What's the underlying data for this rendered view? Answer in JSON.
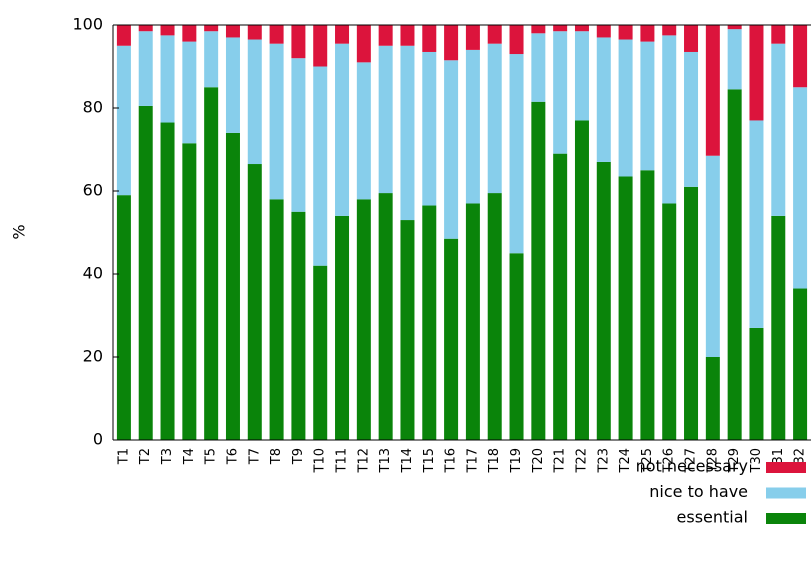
{
  "chart_data": {
    "type": "stacked_bar",
    "y_label": "%",
    "categories": [
      "T1",
      "T2",
      "T3",
      "T4",
      "T5",
      "T6",
      "T7",
      "T8",
      "T9",
      "T10",
      "T11",
      "T12",
      "T13",
      "T14",
      "T15",
      "T16",
      "T17",
      "T18",
      "T19",
      "T20",
      "T21",
      "T22",
      "T23",
      "T24",
      "T25",
      "T26",
      "T27",
      "T28",
      "T29",
      "T30",
      "T31",
      "T32"
    ],
    "series": [
      {
        "name": "essential",
        "color": "#0a840a",
        "values": [
          59,
          80.5,
          76.5,
          71.5,
          85,
          74,
          66.5,
          58,
          55,
          42,
          54,
          58,
          59.5,
          53,
          56.5,
          48.5,
          57,
          59.5,
          45,
          81.5,
          69,
          77,
          67,
          63.5,
          65,
          57,
          61,
          20,
          84.5,
          27,
          54,
          36.5
        ]
      },
      {
        "name": "nice to have",
        "color": "#87ceeb",
        "values": [
          36,
          18,
          21,
          24.5,
          13.5,
          23,
          30,
          37.5,
          37,
          48,
          41.5,
          33,
          35.5,
          42,
          37,
          43,
          37,
          36,
          48,
          16.5,
          29.5,
          21.5,
          30,
          33,
          31,
          40.5,
          32.5,
          48.5,
          14.5,
          50,
          41.5,
          48.5
        ]
      },
      {
        "name": "not necessary",
        "color": "#dc143c",
        "values": [
          5,
          1.5,
          2.5,
          4,
          1.5,
          3,
          3.5,
          4.5,
          8,
          10,
          4.5,
          9,
          5,
          5,
          6.5,
          8.5,
          6,
          4.5,
          7,
          2,
          1.5,
          1.5,
          3,
          3.5,
          4,
          2.5,
          6.5,
          31.5,
          1,
          23,
          4.5,
          15
        ]
      }
    ],
    "ylim": [
      0,
      100
    ],
    "yticks": [
      0,
      20,
      40,
      60,
      80,
      100
    ],
    "legend": "bottom-right"
  }
}
